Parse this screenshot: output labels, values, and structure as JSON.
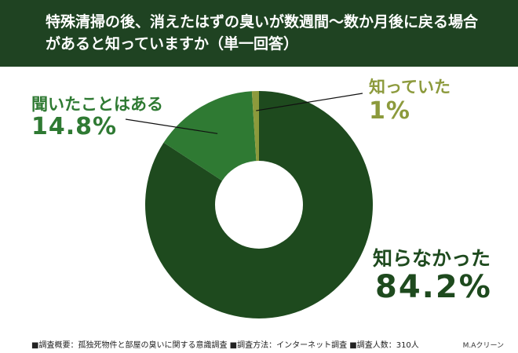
{
  "title": "特殊清掃の後、消えたはずの臭いが数週間〜数か月後に戻る場合があると知っていますか（単一回答）",
  "colors": {
    "header_bg": "#1f4322",
    "dark_green": "#1e4a1e",
    "mid_green": "#2f7a33",
    "olive": "#8c9a3c"
  },
  "chart_data": {
    "type": "pie",
    "variant": "donut",
    "categories": [
      "知らなかった",
      "聞いたことはある",
      "知っていた"
    ],
    "values": [
      84.2,
      14.8,
      1.0
    ],
    "value_labels": [
      "84.2%",
      "14.8%",
      "1%"
    ],
    "colors": [
      "#1e4a1e",
      "#2f7a33",
      "#8c9a3c"
    ]
  },
  "footer": "■調査概要：孤独死物件と部屋の臭いに関する意識調査 ■調査方法：インターネット調査 ■調査人数：310人",
  "credit": "M.Aクリーン"
}
